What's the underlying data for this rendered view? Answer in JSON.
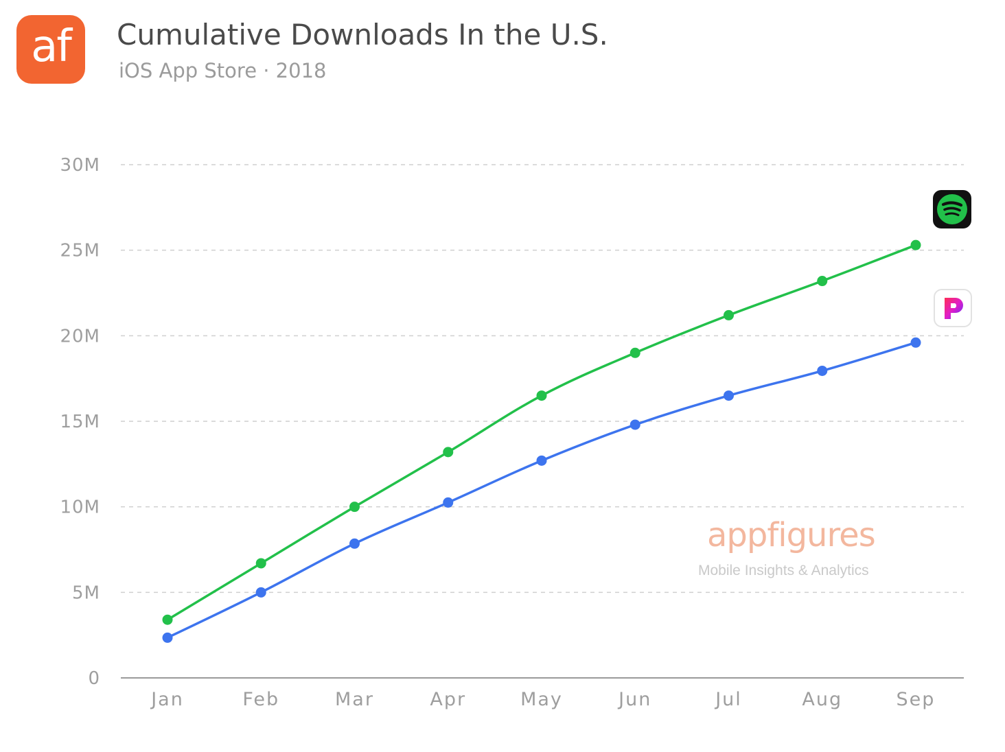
{
  "header": {
    "logo_text": "af",
    "title": "Cumulative Downloads In the U.S.",
    "subtitle": "iOS App Store · 2018"
  },
  "watermark": {
    "brand": "appfigures",
    "tagline": "Mobile Insights & Analytics"
  },
  "colors": {
    "brand": "#f26531",
    "spotify": "#22c04a",
    "pandora": "#3d74ee",
    "grid": "#cfcfcf",
    "axis_text": "#9e9e9e"
  },
  "icons": {
    "logo": "appfigures-logo",
    "spotify": "spotify-icon",
    "pandora": "pandora-icon"
  },
  "chart_data": {
    "type": "line",
    "title": "Cumulative Downloads In the U.S.",
    "subtitle": "iOS App Store · 2018",
    "categories": [
      "Jan",
      "Feb",
      "Mar",
      "Apr",
      "May",
      "Jun",
      "Jul",
      "Aug",
      "Sep"
    ],
    "y_ticks": [
      0,
      5000000,
      10000000,
      15000000,
      20000000,
      25000000,
      30000000
    ],
    "y_tick_labels": [
      "0",
      "5M",
      "10M",
      "15M",
      "20M",
      "25M",
      "30M"
    ],
    "ylim": [
      0,
      30000000
    ],
    "grid": true,
    "grid_style": "dashed",
    "legend": "app icons at right end of lines",
    "series": [
      {
        "icon": "spotify-icon",
        "color": "#22c04a",
        "values": [
          3400000,
          6700000,
          10000000,
          13200000,
          16500000,
          19000000,
          21200000,
          23200000,
          25300000
        ]
      },
      {
        "icon": "pandora-icon",
        "color": "#3d74ee",
        "values": [
          2350000,
          5000000,
          7850000,
          10250000,
          12700000,
          14800000,
          16500000,
          17950000,
          19600000
        ]
      }
    ]
  }
}
